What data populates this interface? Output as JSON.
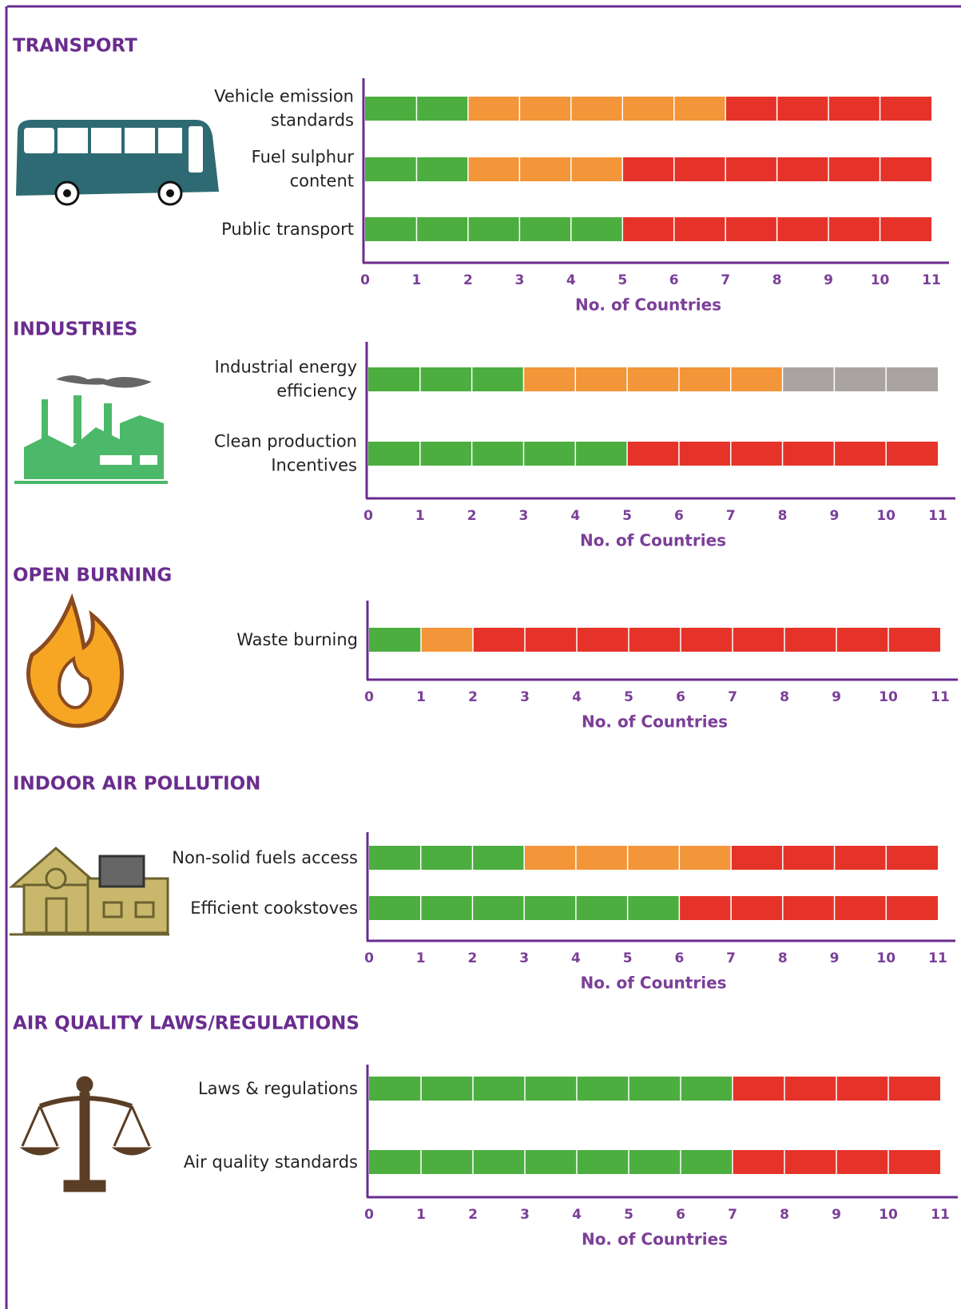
{
  "chart_data": [
    {
      "type": "bar",
      "title": "TRANSPORT",
      "categories": [
        "Vehicle emission standards",
        "Fuel sulphur content",
        "Public transport"
      ],
      "series": [
        {
          "color": "#4cae3f",
          "values": [
            2,
            2,
            5
          ]
        },
        {
          "color": "#f39539",
          "values": [
            5,
            3,
            0
          ]
        },
        {
          "color": "#e63329",
          "values": [
            4,
            6,
            6
          ]
        }
      ],
      "xlim": [
        0,
        11
      ],
      "xticks": [
        0,
        1,
        2,
        3,
        4,
        5,
        6,
        7,
        8,
        9,
        10,
        11
      ],
      "xlabel": "No. of Countries"
    },
    {
      "type": "bar",
      "title": "INDUSTRIES",
      "categories": [
        "Industrial energy efficiency",
        "Clean production Incentives"
      ],
      "series": [
        {
          "color": "#4cae3f",
          "values": [
            3,
            5
          ]
        },
        {
          "color": "#f39539",
          "values": [
            5,
            0
          ]
        },
        {
          "color": "#e63329",
          "values": [
            0,
            6
          ]
        },
        {
          "color": "#a9a4a1",
          "values": [
            3,
            0
          ]
        }
      ],
      "xlim": [
        0,
        11
      ],
      "xticks": [
        0,
        1,
        2,
        3,
        4,
        5,
        6,
        7,
        8,
        9,
        10,
        11
      ],
      "xlabel": "No. of Countries"
    },
    {
      "type": "bar",
      "title": "OPEN BURNING",
      "categories": [
        "Waste burning"
      ],
      "series": [
        {
          "color": "#4cae3f",
          "values": [
            1
          ]
        },
        {
          "color": "#f39539",
          "values": [
            1
          ]
        },
        {
          "color": "#e63329",
          "values": [
            9
          ]
        }
      ],
      "xlim": [
        0,
        11
      ],
      "xticks": [
        0,
        1,
        2,
        3,
        4,
        5,
        6,
        7,
        8,
        9,
        10,
        11
      ],
      "xlabel": "No. of Countries"
    },
    {
      "type": "bar",
      "title": "INDOOR AIR POLLUTION",
      "categories": [
        "Non-solid fuels access",
        "Efficient cookstoves"
      ],
      "series": [
        {
          "color": "#4cae3f",
          "values": [
            3,
            6
          ]
        },
        {
          "color": "#f39539",
          "values": [
            4,
            0
          ]
        },
        {
          "color": "#e63329",
          "values": [
            4,
            5
          ]
        }
      ],
      "xlim": [
        0,
        11
      ],
      "xticks": [
        0,
        1,
        2,
        3,
        4,
        5,
        6,
        7,
        8,
        9,
        10,
        11
      ],
      "xlabel": "No. of Countries"
    },
    {
      "type": "bar",
      "title": "AIR QUALITY LAWS/REGULATIONS",
      "categories": [
        "Laws & regulations",
        "Air quality standards"
      ],
      "series": [
        {
          "color": "#4cae3f",
          "values": [
            7,
            7
          ]
        },
        {
          "color": "#e63329",
          "values": [
            4,
            4
          ]
        }
      ],
      "xlim": [
        0,
        11
      ],
      "xticks": [
        0,
        1,
        2,
        3,
        4,
        5,
        6,
        7,
        8,
        9,
        10,
        11
      ],
      "xlabel": "No. of Countries"
    }
  ]
}
